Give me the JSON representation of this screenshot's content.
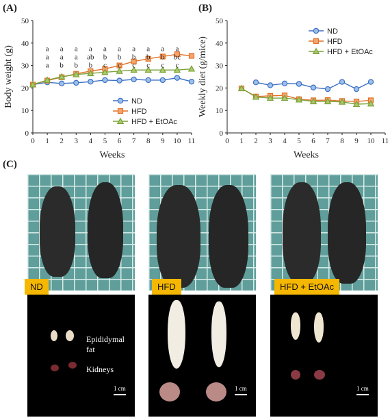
{
  "panels": {
    "a_label": "(A)",
    "b_label": "(B)",
    "c_label": "(C)"
  },
  "colors": {
    "nd": "#3b6fc4",
    "hfd": "#e0712a",
    "hfd_etoac": "#7aa23a",
    "tag": "#f5b700"
  },
  "chart_data": [
    {
      "type": "line",
      "xlabel": "Weeks",
      "ylabel": "Body weight (g)",
      "xlim": [
        0,
        11
      ],
      "ylim": [
        0,
        50
      ],
      "xticks": [
        0,
        1,
        2,
        3,
        4,
        5,
        6,
        7,
        8,
        9,
        10,
        11
      ],
      "yticks": [
        0,
        10,
        20,
        30,
        40,
        50
      ],
      "legend": "bottom-right",
      "grid": false,
      "series": [
        {
          "name": "ND",
          "marker": "circle",
          "x": [
            0,
            1,
            2,
            3,
            4,
            5,
            6,
            7,
            8,
            9,
            10,
            11
          ],
          "values": [
            21.5,
            22.5,
            22,
            22.3,
            22.8,
            23.5,
            23.3,
            23.8,
            23.5,
            23.5,
            24.5,
            22.8
          ]
        },
        {
          "name": "HFD",
          "marker": "square",
          "x": [
            0,
            1,
            2,
            3,
            4,
            5,
            6,
            7,
            8,
            9,
            10,
            11
          ],
          "values": [
            21.5,
            23.3,
            24.8,
            26.3,
            27.5,
            28.5,
            30,
            31.8,
            33,
            34,
            35,
            34.3
          ]
        },
        {
          "name": "HFD + EtOAc",
          "marker": "triangle",
          "x": [
            0,
            1,
            2,
            3,
            4,
            5,
            6,
            7,
            8,
            9,
            10,
            11
          ],
          "values": [
            21.5,
            23.5,
            25,
            26,
            26.5,
            27,
            27.5,
            28,
            28,
            28,
            28,
            28.5
          ]
        }
      ],
      "annotations": [
        {
          "x": 1,
          "letters": [
            "a",
            "a",
            "a"
          ]
        },
        {
          "x": 2,
          "letters": [
            "a",
            "a",
            "b"
          ]
        },
        {
          "x": 3,
          "letters": [
            "a",
            "a",
            "b"
          ]
        },
        {
          "x": 4,
          "letters": [
            "a",
            "ab",
            "b"
          ]
        },
        {
          "x": 5,
          "letters": [
            "a",
            "b",
            "c"
          ]
        },
        {
          "x": 6,
          "letters": [
            "a",
            "b",
            "c"
          ]
        },
        {
          "x": 7,
          "letters": [
            "a",
            "b",
            "c"
          ]
        },
        {
          "x": 8,
          "letters": [
            "a",
            "b",
            "c"
          ]
        },
        {
          "x": 9,
          "letters": [
            "a",
            "b",
            "c"
          ]
        },
        {
          "x": 10,
          "letters": [
            "a",
            "bc",
            "c"
          ]
        }
      ]
    },
    {
      "type": "line",
      "xlabel": "Weeks",
      "ylabel": "Weekly diet (g/mice)",
      "xlim": [
        0,
        11
      ],
      "ylim": [
        0,
        50
      ],
      "xticks": [
        0,
        1,
        2,
        3,
        4,
        5,
        6,
        7,
        8,
        9,
        10,
        11
      ],
      "yticks": [
        0,
        10,
        20,
        30,
        40,
        50
      ],
      "legend": "top-right",
      "grid": false,
      "series": [
        {
          "name": "ND",
          "marker": "circle",
          "x": [
            2,
            3,
            4,
            5,
            6,
            7,
            8,
            9,
            10
          ],
          "values": [
            22.5,
            21.2,
            22,
            21.8,
            20.2,
            19.5,
            22.7,
            19.5,
            22.7
          ]
        },
        {
          "name": "HFD",
          "marker": "square",
          "x": [
            1,
            2,
            3,
            4,
            5,
            6,
            7,
            8,
            9,
            10
          ],
          "values": [
            19.8,
            16.2,
            16.5,
            16.7,
            15,
            14.5,
            14.6,
            14.2,
            14,
            14.5
          ]
        },
        {
          "name": "HFD + EtOAc",
          "marker": "triangle",
          "x": [
            1,
            2,
            3,
            4,
            5,
            6,
            7,
            8,
            9,
            10
          ],
          "values": [
            19.8,
            16,
            15.5,
            15.5,
            14.8,
            14,
            14,
            13.8,
            12.8,
            13
          ]
        }
      ]
    }
  ],
  "photos": {
    "groups": [
      "ND",
      "HFD",
      "HFD + EtOAc"
    ],
    "organ_labels": {
      "fat": "Epididymal\nfat",
      "kidneys": "Kidneys"
    },
    "scale": "1 cm"
  }
}
